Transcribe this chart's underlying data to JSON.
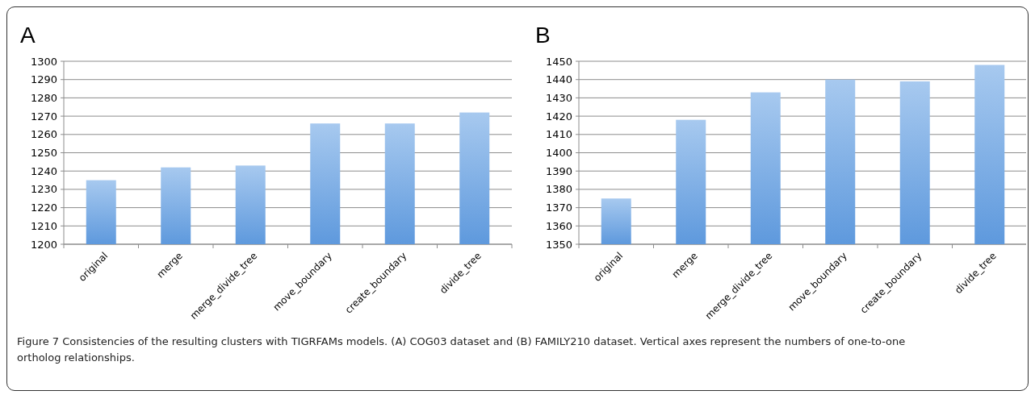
{
  "chart_data": [
    {
      "type": "bar",
      "title": "A",
      "categories": [
        "original",
        "merge",
        "merge_divide_tree",
        "move_boundary",
        "create_boundary",
        "divide_tree"
      ],
      "values": [
        1235,
        1242,
        1243,
        1266,
        1266,
        1272
      ],
      "color": "#78ace6",
      "ylim": [
        1200,
        1300
      ],
      "yticks": [
        1200,
        1210,
        1220,
        1230,
        1240,
        1250,
        1260,
        1270,
        1280,
        1290,
        1300
      ],
      "grid": "y",
      "annotations": [
        "Figure 7 Consistencies of the resulting clusters with TIGRFAMs models. (A) COG03 dataset and (B) FAMILY210 dataset. Vertical axes represent the numbers of one-to-one ortholog relationships."
      ]
    },
    {
      "type": "bar",
      "title": "B",
      "categories": [
        "original",
        "merge",
        "merge_divide_tree",
        "move_boundary",
        "create_boundary",
        "divide_tree"
      ],
      "values": [
        1375,
        1418,
        1433,
        1440,
        1439,
        1448
      ],
      "color": "#78ace6",
      "ylim": [
        1350,
        1450
      ],
      "yticks": [
        1350,
        1360,
        1370,
        1380,
        1390,
        1400,
        1410,
        1420,
        1430,
        1440,
        1450
      ],
      "grid": "y"
    }
  ]
}
